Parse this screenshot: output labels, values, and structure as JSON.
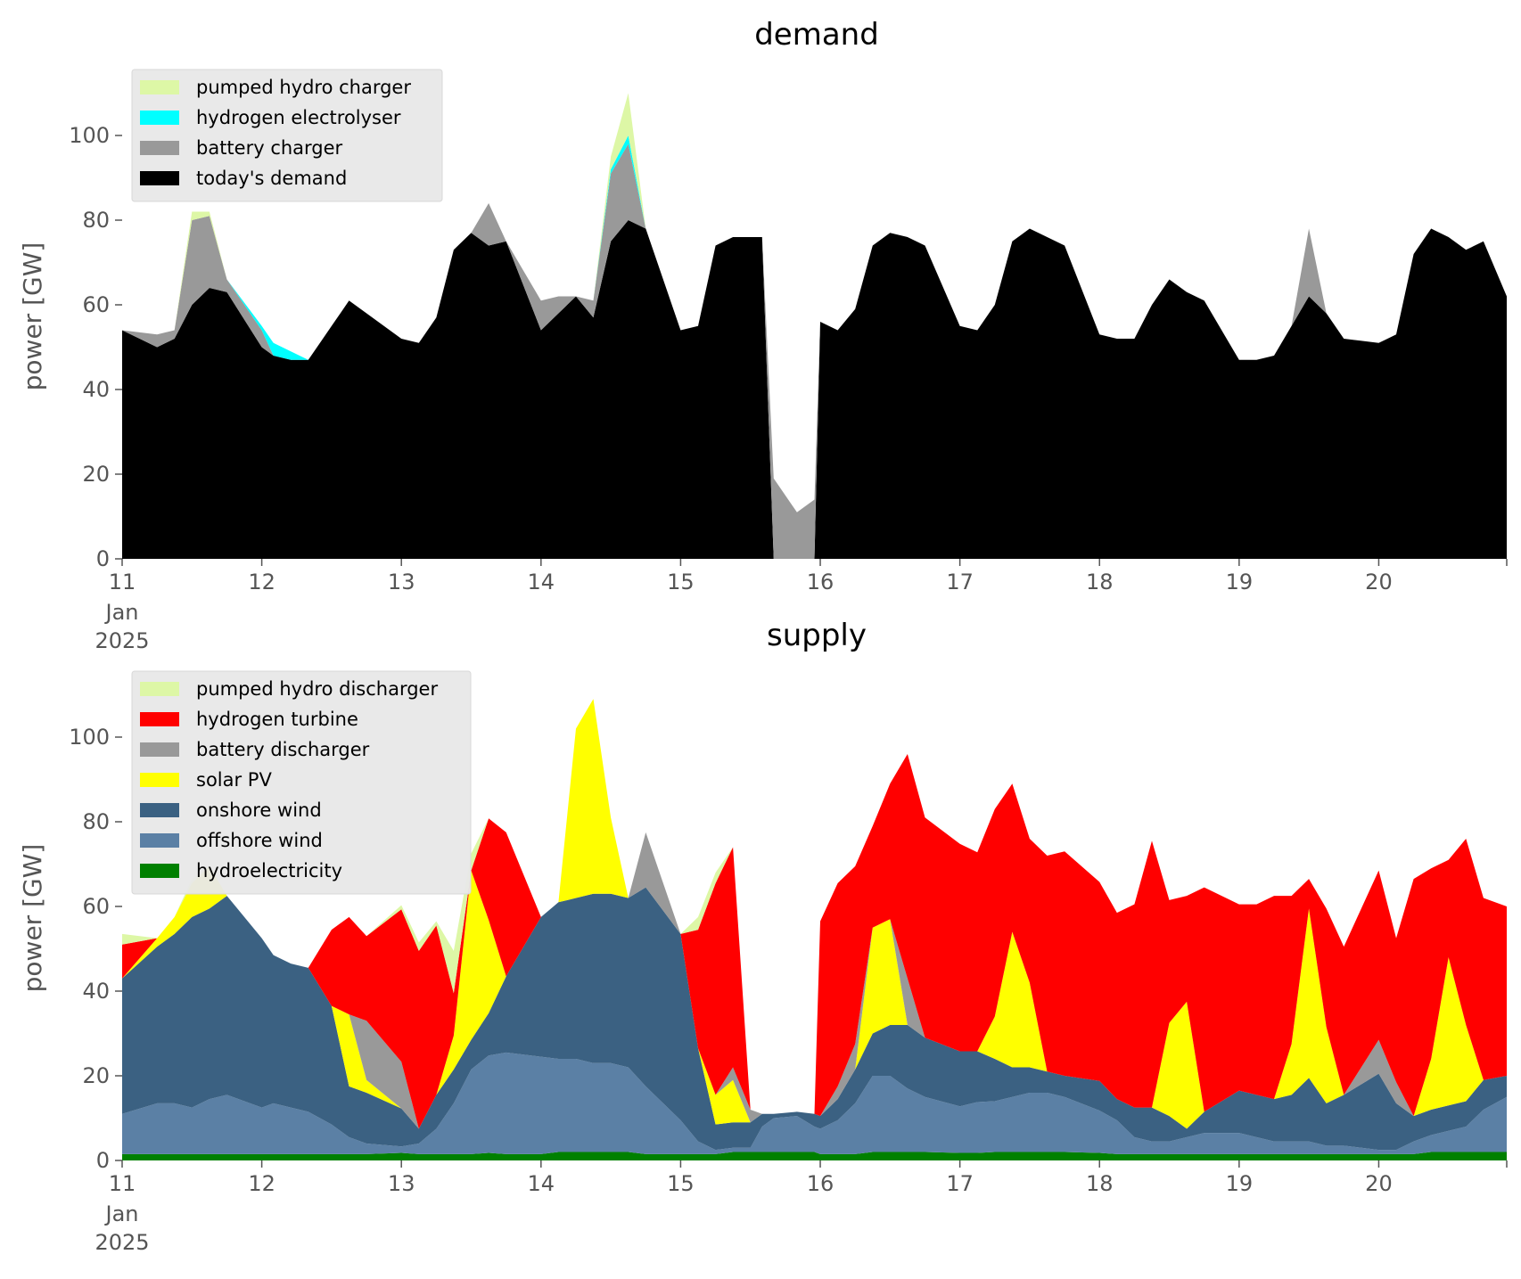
{
  "chart_data": [
    {
      "type": "area",
      "title": "demand",
      "xlabel": "",
      "ylabel": "power [GW]",
      "ylim": [
        0,
        112
      ],
      "xlim": [
        "2025-01-11",
        "2025-01-20T22:00"
      ],
      "yticks": [
        0,
        20,
        40,
        60,
        80,
        100
      ],
      "xtick_labels": [
        "11",
        "12",
        "13",
        "14",
        "15",
        "16",
        "17",
        "18",
        "19",
        "20"
      ],
      "xtick_sublabels": [
        "Jan",
        "2025"
      ],
      "grid": false,
      "legend_position": "top-left",
      "stacked": true,
      "x": [
        "2025-01-11T00:00",
        "2025-01-11T06:00",
        "2025-01-11T09:00",
        "2025-01-11T12:00",
        "2025-01-11T15:00",
        "2025-01-11T18:00",
        "2025-01-12T00:00",
        "2025-01-12T02:00",
        "2025-01-12T05:00",
        "2025-01-12T08:00",
        "2025-01-12T12:00",
        "2025-01-12T15:00",
        "2025-01-12T18:00",
        "2025-01-13T00:00",
        "2025-01-13T03:00",
        "2025-01-13T06:00",
        "2025-01-13T09:00",
        "2025-01-13T12:00",
        "2025-01-13T15:00",
        "2025-01-13T18:00",
        "2025-01-14T00:00",
        "2025-01-14T03:00",
        "2025-01-14T06:00",
        "2025-01-14T09:00",
        "2025-01-14T12:00",
        "2025-01-14T15:00",
        "2025-01-14T18:00",
        "2025-01-15T00:00",
        "2025-01-15T03:00",
        "2025-01-15T06:00",
        "2025-01-15T09:00",
        "2025-01-15T12:00",
        "2025-01-15T14:00",
        "2025-01-15T16:00",
        "2025-01-15T20:00",
        "2025-01-15T23:00",
        "2025-01-16T00:00",
        "2025-01-16T03:00",
        "2025-01-16T06:00",
        "2025-01-16T09:00",
        "2025-01-16T12:00",
        "2025-01-16T15:00",
        "2025-01-16T18:00",
        "2025-01-17T00:00",
        "2025-01-17T03:00",
        "2025-01-17T06:00",
        "2025-01-17T09:00",
        "2025-01-17T12:00",
        "2025-01-17T15:00",
        "2025-01-17T18:00",
        "2025-01-18T00:00",
        "2025-01-18T03:00",
        "2025-01-18T06:00",
        "2025-01-18T09:00",
        "2025-01-18T12:00",
        "2025-01-18T15:00",
        "2025-01-18T18:00",
        "2025-01-19T00:00",
        "2025-01-19T03:00",
        "2025-01-19T06:00",
        "2025-01-19T09:00",
        "2025-01-19T12:00",
        "2025-01-19T15:00",
        "2025-01-19T18:00",
        "2025-01-20T00:00",
        "2025-01-20T03:00",
        "2025-01-20T06:00",
        "2025-01-20T09:00",
        "2025-01-20T12:00",
        "2025-01-20T15:00",
        "2025-01-20T18:00",
        "2025-01-20T22:00"
      ],
      "series": [
        {
          "name": "today's demand",
          "color": "#000000",
          "values": [
            54,
            50,
            52,
            60,
            64,
            63,
            50,
            48,
            47,
            47,
            55,
            61,
            58,
            52,
            51,
            57,
            73,
            77,
            74,
            75,
            54,
            58,
            62,
            57,
            75,
            80,
            78,
            54,
            55,
            74,
            76,
            76,
            76,
            0,
            0,
            0,
            56,
            54,
            59,
            74,
            77,
            76,
            74,
            55,
            54,
            60,
            75,
            78,
            76,
            74,
            53,
            52,
            52,
            60,
            66,
            63,
            61,
            47,
            47,
            48,
            55,
            62,
            58,
            52,
            51,
            53,
            72,
            78,
            76,
            73,
            75,
            62
          ]
        },
        {
          "name": "battery charger",
          "color": "#999999",
          "values": [
            0,
            3,
            2,
            20,
            17,
            3,
            4,
            0,
            0,
            0,
            0,
            0,
            0,
            0,
            0,
            0,
            0,
            0,
            10,
            0,
            7,
            4,
            0,
            4,
            16,
            18,
            0,
            0,
            0,
            0,
            0,
            0,
            0,
            19,
            11,
            14,
            0,
            0,
            0,
            0,
            0,
            0,
            0,
            0,
            0,
            0,
            0,
            0,
            0,
            0,
            0,
            0,
            0,
            0,
            0,
            0,
            0,
            0,
            0,
            0,
            0,
            16,
            0,
            0,
            0,
            0,
            0,
            0,
            0,
            0,
            0,
            0
          ]
        },
        {
          "name": "hydrogen electrolyser",
          "color": "#00ffff",
          "values": [
            0,
            0,
            0,
            0,
            0,
            0,
            1,
            3,
            2,
            0,
            0,
            0,
            0,
            0,
            0,
            0,
            0,
            0,
            0,
            0,
            0,
            0,
            0,
            0,
            1,
            2,
            0,
            0,
            0,
            0,
            0,
            0,
            0,
            0,
            0,
            0,
            0,
            0,
            0,
            0,
            0,
            0,
            0,
            0,
            0,
            0,
            0,
            0,
            0,
            0,
            0,
            0,
            0,
            0,
            0,
            0,
            0,
            0,
            0,
            0,
            0,
            0,
            0,
            0,
            0,
            0,
            0,
            0,
            0,
            0,
            0,
            0
          ]
        },
        {
          "name": "pumped hydro charger",
          "color": "#ddf7a6",
          "values": [
            0,
            0,
            0,
            2,
            1,
            0,
            0,
            0,
            0,
            0,
            0,
            0,
            0,
            0,
            0,
            0,
            0,
            0,
            0,
            0,
            0,
            0,
            0,
            0,
            3,
            10,
            0,
            0,
            0,
            0,
            0,
            0,
            0,
            0,
            0,
            0,
            0,
            0,
            0,
            0,
            0,
            0,
            0,
            0,
            0,
            0,
            0,
            0,
            0,
            0,
            0,
            0,
            0,
            0,
            0,
            0,
            0,
            0,
            0,
            0,
            0,
            0,
            0,
            0,
            0,
            0,
            0,
            0,
            0,
            0,
            0,
            0
          ]
        }
      ]
    },
    {
      "type": "area",
      "title": "supply",
      "xlabel": "",
      "ylabel": "power [GW]",
      "ylim": [
        0,
        112
      ],
      "xlim": [
        "2025-01-11",
        "2025-01-20T22:00"
      ],
      "yticks": [
        0,
        20,
        40,
        60,
        80,
        100
      ],
      "xtick_labels": [
        "11",
        "12",
        "13",
        "14",
        "15",
        "16",
        "17",
        "18",
        "19",
        "20"
      ],
      "xtick_sublabels": [
        "Jan",
        "2025"
      ],
      "grid": false,
      "legend_position": "top-left",
      "stacked": true,
      "x": [
        "2025-01-11T00:00",
        "2025-01-11T06:00",
        "2025-01-11T09:00",
        "2025-01-11T12:00",
        "2025-01-11T15:00",
        "2025-01-11T18:00",
        "2025-01-12T00:00",
        "2025-01-12T02:00",
        "2025-01-12T05:00",
        "2025-01-12T08:00",
        "2025-01-12T12:00",
        "2025-01-12T15:00",
        "2025-01-12T18:00",
        "2025-01-13T00:00",
        "2025-01-13T03:00",
        "2025-01-13T06:00",
        "2025-01-13T09:00",
        "2025-01-13T12:00",
        "2025-01-13T15:00",
        "2025-01-13T18:00",
        "2025-01-14T00:00",
        "2025-01-14T03:00",
        "2025-01-14T06:00",
        "2025-01-14T09:00",
        "2025-01-14T12:00",
        "2025-01-14T15:00",
        "2025-01-14T18:00",
        "2025-01-15T00:00",
        "2025-01-15T03:00",
        "2025-01-15T06:00",
        "2025-01-15T09:00",
        "2025-01-15T12:00",
        "2025-01-15T14:00",
        "2025-01-15T16:00",
        "2025-01-15T20:00",
        "2025-01-15T23:00",
        "2025-01-16T00:00",
        "2025-01-16T03:00",
        "2025-01-16T06:00",
        "2025-01-16T09:00",
        "2025-01-16T12:00",
        "2025-01-16T15:00",
        "2025-01-16T18:00",
        "2025-01-17T00:00",
        "2025-01-17T03:00",
        "2025-01-17T06:00",
        "2025-01-17T09:00",
        "2025-01-17T12:00",
        "2025-01-17T15:00",
        "2025-01-17T18:00",
        "2025-01-18T00:00",
        "2025-01-18T03:00",
        "2025-01-18T06:00",
        "2025-01-18T09:00",
        "2025-01-18T12:00",
        "2025-01-18T15:00",
        "2025-01-18T18:00",
        "2025-01-19T00:00",
        "2025-01-19T03:00",
        "2025-01-19T06:00",
        "2025-01-19T09:00",
        "2025-01-19T12:00",
        "2025-01-19T15:00",
        "2025-01-19T18:00",
        "2025-01-20T00:00",
        "2025-01-20T03:00",
        "2025-01-20T06:00",
        "2025-01-20T09:00",
        "2025-01-20T12:00",
        "2025-01-20T15:00",
        "2025-01-20T18:00",
        "2025-01-20T22:00"
      ],
      "series": [
        {
          "name": "hydroelectricity",
          "color": "#008000",
          "values": [
            1.5,
            1.5,
            1.5,
            1.5,
            1.5,
            1.5,
            1.5,
            1.5,
            1.5,
            1.5,
            1.5,
            1.5,
            1.5,
            1.8,
            1.5,
            1.5,
            1.5,
            1.5,
            1.8,
            1.5,
            1.5,
            2,
            2,
            2,
            2,
            2,
            1.5,
            1.5,
            1.5,
            1.5,
            2,
            2,
            2,
            2,
            2,
            2,
            1.5,
            1.5,
            1.5,
            2,
            2,
            2,
            2,
            1.8,
            1.8,
            2,
            2,
            2,
            2,
            2,
            1.8,
            1.5,
            1.5,
            1.5,
            1.5,
            1.5,
            1.5,
            1.5,
            1.5,
            1.5,
            1.5,
            1.5,
            1.5,
            1.5,
            1.5,
            1.5,
            1.5,
            2,
            2,
            2,
            2,
            2
          ]
        },
        {
          "name": "offshore wind",
          "color": "#5b80a5",
          "values": [
            9.5,
            12,
            12,
            11,
            13,
            14,
            11,
            12,
            11,
            10,
            7,
            4,
            2.5,
            1.5,
            2.5,
            6,
            12,
            20,
            23,
            24,
            23,
            22,
            22,
            21,
            21,
            20,
            16,
            8,
            3,
            1,
            1,
            1,
            6,
            8,
            8.5,
            6,
            6,
            8,
            12,
            18,
            18,
            15,
            13,
            11,
            12,
            12,
            13,
            14,
            14,
            13,
            10,
            8,
            4,
            3,
            3,
            4,
            5,
            5,
            4,
            3,
            3,
            3,
            2,
            2,
            1,
            1,
            3,
            4,
            5,
            6,
            10,
            13
          ]
        },
        {
          "name": "onshore wind",
          "color": "#3b6182",
          "values": [
            32,
            37,
            40,
            45,
            45,
            47,
            40,
            35,
            34,
            34,
            28,
            12,
            12,
            9,
            3.5,
            8,
            8,
            7,
            10,
            18,
            33,
            37,
            38,
            40,
            40,
            40,
            47,
            44,
            22,
            6,
            6,
            6,
            3,
            1,
            1,
            3,
            3,
            5,
            8,
            10,
            12,
            15,
            14,
            13,
            12,
            10,
            7,
            6,
            5,
            5,
            7,
            5,
            7,
            8,
            6,
            2,
            5,
            10,
            10,
            10,
            11,
            15,
            10,
            12,
            18,
            11,
            6,
            6,
            6,
            6,
            7,
            5
          ]
        },
        {
          "name": "solar PV",
          "color": "#ffff00",
          "values": [
            0,
            2,
            4,
            8,
            10,
            0,
            0,
            0,
            0,
            0,
            0,
            17,
            3,
            0,
            0,
            0,
            8,
            40,
            22,
            0,
            0,
            0,
            40,
            46,
            18,
            0,
            0,
            0,
            0,
            7,
            10,
            0,
            0,
            0,
            0,
            0,
            0,
            0,
            0,
            25,
            25,
            0,
            0,
            0,
            0,
            10,
            32,
            20,
            0,
            0,
            0,
            0,
            0,
            0,
            22,
            30,
            0,
            0,
            0,
            0,
            12,
            40,
            18,
            0,
            0,
            0,
            0,
            12,
            35,
            18,
            0,
            0
          ]
        },
        {
          "name": "battery discharger",
          "color": "#999999",
          "values": [
            0,
            0,
            0,
            0,
            0,
            0,
            0,
            0,
            0,
            0,
            0,
            0,
            14,
            11,
            0,
            0,
            0,
            0,
            0,
            0,
            0,
            0,
            0,
            0,
            0,
            0,
            13,
            0,
            0,
            0,
            3,
            3,
            0,
            0,
            0,
            0,
            0,
            3,
            6,
            0,
            0,
            11,
            0,
            0,
            0,
            0,
            0,
            0,
            0,
            0,
            0,
            0,
            0,
            0,
            0,
            0,
            0,
            0,
            0,
            0,
            0,
            0,
            0,
            0,
            8,
            5,
            0,
            0,
            0,
            0,
            0,
            0
          ]
        },
        {
          "name": "hydrogen turbine",
          "color": "#ff0000",
          "values": [
            8,
            0,
            0,
            0,
            0,
            0,
            0,
            0,
            0,
            0,
            18,
            23,
            20,
            36,
            42,
            40,
            10,
            0,
            24,
            34,
            0,
            0,
            0,
            0,
            0,
            0,
            0,
            0,
            28,
            50,
            52,
            0,
            0,
            0,
            0,
            0,
            46,
            48,
            42,
            24,
            32,
            53,
            52,
            49,
            47,
            49,
            35,
            34,
            51,
            53,
            47,
            44,
            48,
            63,
            29,
            25,
            53,
            44,
            45,
            48,
            35,
            7,
            28,
            35,
            40,
            34,
            56,
            45,
            23,
            44,
            43,
            40
          ]
        },
        {
          "name": "pumped hydro discharger",
          "color": "#ddf7a6",
          "values": [
            2.5,
            0,
            0,
            1,
            0,
            0,
            0,
            0,
            0,
            0,
            0,
            0,
            0,
            1,
            2,
            1,
            10,
            4,
            0,
            0,
            0,
            0,
            0,
            0,
            0,
            0,
            0,
            0,
            3,
            2.5,
            0,
            0,
            0,
            0,
            0,
            0,
            0,
            0,
            0,
            0,
            0,
            0,
            0,
            0,
            0,
            0,
            0,
            0,
            0,
            0,
            0,
            0,
            0,
            0,
            0,
            0,
            0,
            0,
            0,
            0,
            0,
            0,
            0,
            0,
            0,
            0,
            0,
            0,
            0,
            0,
            0,
            0
          ]
        }
      ]
    }
  ],
  "legends": {
    "demand": [
      "pumped hydro charger",
      "hydrogen electrolyser",
      "battery charger",
      "today's demand"
    ],
    "supply": [
      "pumped hydro discharger",
      "hydrogen turbine",
      "battery discharger",
      "solar PV",
      "onshore wind",
      "offshore wind",
      "hydroelectricity"
    ]
  }
}
